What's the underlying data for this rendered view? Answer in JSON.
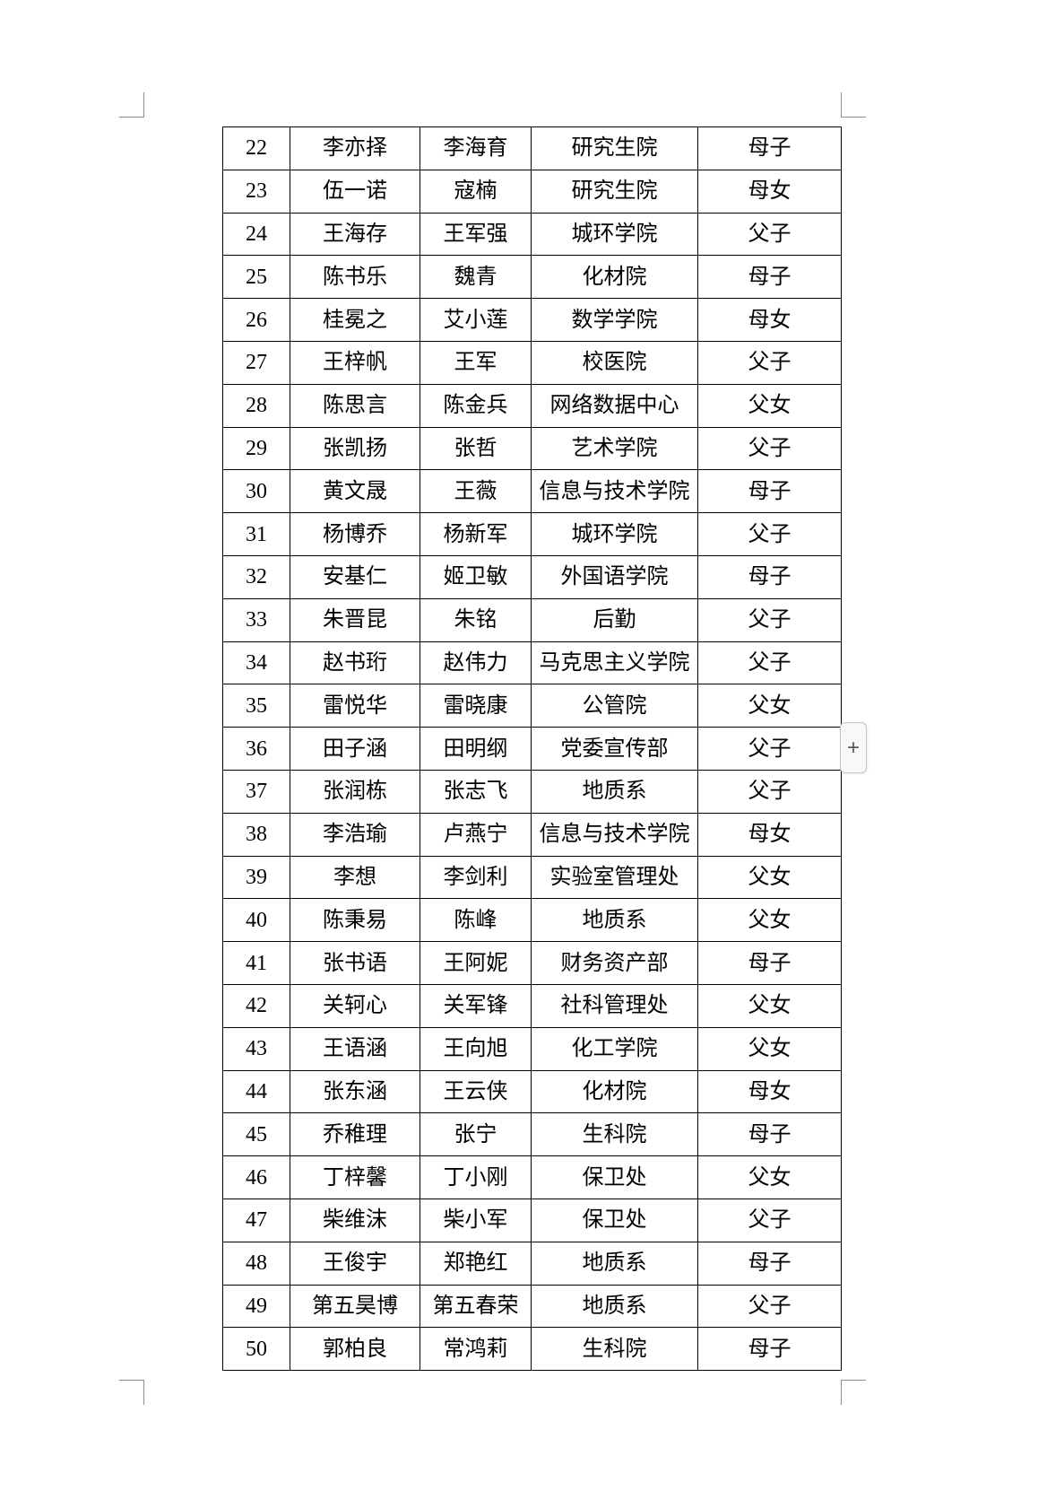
{
  "page": {
    "add_button_label": "+"
  },
  "table": {
    "column_keys": [
      "no",
      "child",
      "parent",
      "department",
      "relation"
    ],
    "rows": [
      {
        "no": "22",
        "child": "李亦择",
        "parent": "李海育",
        "department": "研究生院",
        "relation": "母子"
      },
      {
        "no": "23",
        "child": "伍一诺",
        "parent": "寇楠",
        "department": "研究生院",
        "relation": "母女"
      },
      {
        "no": "24",
        "child": "王海存",
        "parent": "王军强",
        "department": "城环学院",
        "relation": "父子"
      },
      {
        "no": "25",
        "child": "陈书乐",
        "parent": "魏青",
        "department": "化材院",
        "relation": "母子"
      },
      {
        "no": "26",
        "child": "桂冕之",
        "parent": "艾小莲",
        "department": "数学学院",
        "relation": "母女"
      },
      {
        "no": "27",
        "child": "王梓帆",
        "parent": "王军",
        "department": "校医院",
        "relation": "父子"
      },
      {
        "no": "28",
        "child": "陈思言",
        "parent": "陈金兵",
        "department": "网络数据中心",
        "relation": "父女"
      },
      {
        "no": "29",
        "child": "张凯扬",
        "parent": "张哲",
        "department": "艺术学院",
        "relation": "父子"
      },
      {
        "no": "30",
        "child": "黄文晟",
        "parent": "王薇",
        "department": "信息与技术学院",
        "relation": "母子"
      },
      {
        "no": "31",
        "child": "杨博乔",
        "parent": "杨新军",
        "department": "城环学院",
        "relation": "父子"
      },
      {
        "no": "32",
        "child": "安基仁",
        "parent": "姬卫敏",
        "department": "外国语学院",
        "relation": "母子"
      },
      {
        "no": "33",
        "child": "朱晋昆",
        "parent": "朱铭",
        "department": "后勤",
        "relation": "父子"
      },
      {
        "no": "34",
        "child": "赵书珩",
        "parent": "赵伟力",
        "department": "马克思主义学院",
        "relation": "父子"
      },
      {
        "no": "35",
        "child": "雷悦华",
        "parent": "雷晓康",
        "department": "公管院",
        "relation": "父女"
      },
      {
        "no": "36",
        "child": "田子涵",
        "parent": "田明纲",
        "department": "党委宣传部",
        "relation": "父子"
      },
      {
        "no": "37",
        "child": "张润栋",
        "parent": "张志飞",
        "department": "地质系",
        "relation": "父子"
      },
      {
        "no": "38",
        "child": "李浩瑜",
        "parent": "卢燕宁",
        "department": "信息与技术学院",
        "relation": "母女"
      },
      {
        "no": "39",
        "child": "李想",
        "parent": "李剑利",
        "department": "实验室管理处",
        "relation": "父女"
      },
      {
        "no": "40",
        "child": "陈秉易",
        "parent": "陈峰",
        "department": "地质系",
        "relation": "父女"
      },
      {
        "no": "41",
        "child": "张书语",
        "parent": "王阿妮",
        "department": "财务资产部",
        "relation": "母子"
      },
      {
        "no": "42",
        "child": "关轲心",
        "parent": "关军锋",
        "department": "社科管理处",
        "relation": "父女"
      },
      {
        "no": "43",
        "child": "王语涵",
        "parent": "王向旭",
        "department": "化工学院",
        "relation": "父女"
      },
      {
        "no": "44",
        "child": "张东涵",
        "parent": "王云侠",
        "department": "化材院",
        "relation": "母女"
      },
      {
        "no": "45",
        "child": "乔稚理",
        "parent": "张宁",
        "department": "生科院",
        "relation": "母子"
      },
      {
        "no": "46",
        "child": "丁梓馨",
        "parent": "丁小刚",
        "department": "保卫处",
        "relation": "父女"
      },
      {
        "no": "47",
        "child": "柴维沫",
        "parent": "柴小军",
        "department": "保卫处",
        "relation": "父子"
      },
      {
        "no": "48",
        "child": "王俊宇",
        "parent": "郑艳红",
        "department": "地质系",
        "relation": "母子"
      },
      {
        "no": "49",
        "child": "第五昊博",
        "parent": "第五春荣",
        "department": "地质系",
        "relation": "父子"
      },
      {
        "no": "50",
        "child": "郭柏良",
        "parent": "常鸿莉",
        "department": "生科院",
        "relation": "母子"
      }
    ]
  }
}
